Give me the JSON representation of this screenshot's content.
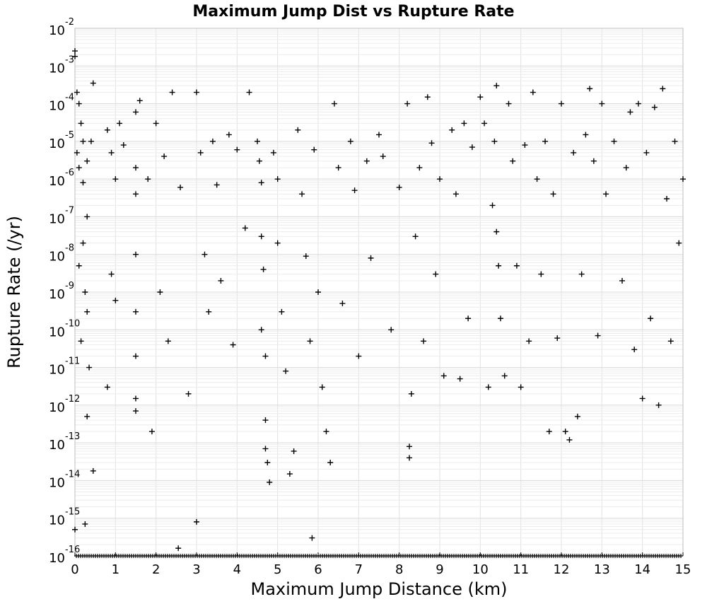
{
  "chart_data": {
    "type": "scatter",
    "title": "Maximum Jump Dist vs Rupture Rate",
    "xlabel": "Maximum Jump Distance (km)",
    "ylabel": "Rupture Rate (/yr)",
    "xlim": [
      0,
      15
    ],
    "ylim": [
      1e-16,
      0.01
    ],
    "yscale": "log",
    "grid": true,
    "legend": "none",
    "marker": "+",
    "marker_color": "#000000",
    "x_ticks": [
      "0",
      "1",
      "2",
      "3",
      "4",
      "5",
      "6",
      "7",
      "8",
      "9",
      "10",
      "11",
      "12",
      "13",
      "14",
      "15"
    ],
    "y_ticks": [
      {
        "base": "10",
        "exp": "-2"
      },
      {
        "base": "10",
        "exp": "-3"
      },
      {
        "base": "10",
        "exp": "-4"
      },
      {
        "base": "10",
        "exp": "-5"
      },
      {
        "base": "10",
        "exp": "-6"
      },
      {
        "base": "10",
        "exp": "-7"
      },
      {
        "base": "10",
        "exp": "-8"
      },
      {
        "base": "10",
        "exp": "-9"
      },
      {
        "base": "10",
        "exp": "-10"
      },
      {
        "base": "10",
        "exp": "-11"
      },
      {
        "base": "10",
        "exp": "-12"
      },
      {
        "base": "10",
        "exp": "-13"
      },
      {
        "base": "10",
        "exp": "-14"
      },
      {
        "base": "10",
        "exp": "-15"
      },
      {
        "base": "10",
        "exp": "-16"
      }
    ],
    "series": [
      {
        "points": [
          [
            0.0,
            0.0025
          ],
          [
            0.0,
            0.0018
          ],
          [
            0.05,
            0.0002
          ],
          [
            0.1,
            0.0001
          ],
          [
            0.15,
            3e-05
          ],
          [
            0.2,
            1e-05
          ],
          [
            0.05,
            5e-06
          ],
          [
            0.1,
            2e-06
          ],
          [
            0.2,
            8e-07
          ],
          [
            0.3,
            3e-06
          ],
          [
            0.4,
            1e-05
          ],
          [
            0.45,
            0.00035
          ],
          [
            0.3,
            1e-07
          ],
          [
            0.2,
            2e-08
          ],
          [
            0.1,
            5e-09
          ],
          [
            0.25,
            1e-09
          ],
          [
            0.3,
            3e-10
          ],
          [
            0.15,
            5e-11
          ],
          [
            0.35,
            1e-11
          ],
          [
            0.3,
            5e-13
          ],
          [
            0.45,
            1.8e-14
          ],
          [
            0.0,
            5e-16
          ],
          [
            0.25,
            7e-16
          ],
          [
            0.8,
            2e-05
          ],
          [
            0.9,
            5e-06
          ],
          [
            1.0,
            1e-06
          ],
          [
            1.1,
            3e-05
          ],
          [
            1.2,
            8e-06
          ],
          [
            0.8,
            3e-12
          ],
          [
            0.9,
            3e-09
          ],
          [
            1.0,
            6e-10
          ],
          [
            1.5,
            6e-05
          ],
          [
            1.6,
            0.00012
          ],
          [
            1.5,
            2e-06
          ],
          [
            1.5,
            4e-07
          ],
          [
            1.5,
            1e-08
          ],
          [
            1.5,
            3e-10
          ],
          [
            1.5,
            2e-11
          ],
          [
            1.5,
            1.5e-12
          ],
          [
            1.5,
            7e-13
          ],
          [
            1.8,
            1e-06
          ],
          [
            1.9,
            2e-13
          ],
          [
            2.0,
            3e-05
          ],
          [
            2.1,
            1e-09
          ],
          [
            2.2,
            4e-06
          ],
          [
            2.3,
            5e-11
          ],
          [
            2.4,
            0.0002
          ],
          [
            2.55,
            1.6e-16
          ],
          [
            2.6,
            6e-07
          ],
          [
            2.8,
            2e-12
          ],
          [
            3.0,
            0.0002
          ],
          [
            3.0,
            8e-16
          ],
          [
            3.1,
            5e-06
          ],
          [
            3.2,
            1e-08
          ],
          [
            3.3,
            3e-10
          ],
          [
            3.4,
            1e-05
          ],
          [
            3.5,
            7e-07
          ],
          [
            3.6,
            2e-09
          ],
          [
            3.8,
            1.5e-05
          ],
          [
            3.9,
            4e-11
          ],
          [
            4.0,
            6e-06
          ],
          [
            4.2,
            5e-08
          ],
          [
            4.3,
            0.0002
          ],
          [
            4.5,
            1e-05
          ],
          [
            4.55,
            3e-06
          ],
          [
            4.6,
            8e-07
          ],
          [
            4.6,
            3e-08
          ],
          [
            4.65,
            4e-09
          ],
          [
            4.6,
            1e-10
          ],
          [
            4.7,
            2e-11
          ],
          [
            4.7,
            4e-13
          ],
          [
            4.7,
            7e-14
          ],
          [
            4.75,
            3e-14
          ],
          [
            4.8,
            9e-15
          ],
          [
            4.9,
            5e-06
          ],
          [
            5.0,
            1e-06
          ],
          [
            5.0,
            2e-08
          ],
          [
            5.1,
            3e-10
          ],
          [
            5.2,
            8e-12
          ],
          [
            5.3,
            1.5e-14
          ],
          [
            5.4,
            6e-14
          ],
          [
            5.5,
            2e-05
          ],
          [
            5.6,
            4e-07
          ],
          [
            5.7,
            9e-09
          ],
          [
            5.8,
            5e-11
          ],
          [
            5.85,
            3e-16
          ],
          [
            5.9,
            6e-06
          ],
          [
            6.0,
            1e-09
          ],
          [
            6.1,
            3e-12
          ],
          [
            6.2,
            2e-13
          ],
          [
            6.3,
            3e-14
          ],
          [
            6.4,
            0.0001
          ],
          [
            6.5,
            2e-06
          ],
          [
            6.6,
            5e-10
          ],
          [
            6.8,
            1e-05
          ],
          [
            6.9,
            5e-07
          ],
          [
            7.0,
            2e-11
          ],
          [
            7.2,
            3e-06
          ],
          [
            7.3,
            8e-09
          ],
          [
            7.5,
            1.5e-05
          ],
          [
            7.6,
            4e-06
          ],
          [
            7.8,
            1e-10
          ],
          [
            8.0,
            6e-07
          ],
          [
            8.2,
            0.0001
          ],
          [
            8.25,
            8e-14
          ],
          [
            8.25,
            4e-14
          ],
          [
            8.3,
            2e-12
          ],
          [
            8.4,
            3e-08
          ],
          [
            8.5,
            2e-06
          ],
          [
            8.6,
            5e-11
          ],
          [
            8.7,
            0.00015
          ],
          [
            8.8,
            9e-06
          ],
          [
            8.9,
            3e-09
          ],
          [
            9.0,
            1e-06
          ],
          [
            9.1,
            6e-12
          ],
          [
            9.3,
            2e-05
          ],
          [
            9.4,
            4e-07
          ],
          [
            9.5,
            5e-12
          ],
          [
            9.6,
            3e-05
          ],
          [
            9.7,
            2e-10
          ],
          [
            9.8,
            7e-06
          ],
          [
            10.0,
            0.00015
          ],
          [
            10.1,
            3e-05
          ],
          [
            10.2,
            3e-12
          ],
          [
            10.3,
            2e-07
          ],
          [
            10.35,
            1e-05
          ],
          [
            10.4,
            0.0003
          ],
          [
            10.4,
            4e-08
          ],
          [
            10.45,
            5e-09
          ],
          [
            10.5,
            2e-10
          ],
          [
            10.6,
            6e-12
          ],
          [
            10.7,
            0.0001
          ],
          [
            10.8,
            3e-06
          ],
          [
            10.9,
            5e-09
          ],
          [
            11.0,
            3e-12
          ],
          [
            11.1,
            8e-06
          ],
          [
            11.2,
            5e-11
          ],
          [
            11.3,
            0.0002
          ],
          [
            11.4,
            1e-06
          ],
          [
            11.5,
            3e-09
          ],
          [
            11.6,
            1e-05
          ],
          [
            11.7,
            2e-13
          ],
          [
            11.8,
            4e-07
          ],
          [
            11.9,
            6e-11
          ],
          [
            12.0,
            0.0001
          ],
          [
            12.1,
            2e-13
          ],
          [
            12.2,
            1.2e-13
          ],
          [
            12.3,
            5e-06
          ],
          [
            12.4,
            5e-13
          ],
          [
            12.5,
            3e-09
          ],
          [
            12.6,
            1.5e-05
          ],
          [
            12.7,
            0.00025
          ],
          [
            12.8,
            3e-06
          ],
          [
            12.9,
            7e-11
          ],
          [
            13.0,
            0.0001
          ],
          [
            13.1,
            4e-07
          ],
          [
            13.3,
            1e-05
          ],
          [
            13.5,
            2e-09
          ],
          [
            13.6,
            2e-06
          ],
          [
            13.7,
            6e-05
          ],
          [
            13.8,
            3e-11
          ],
          [
            13.9,
            0.0001
          ],
          [
            14.0,
            1.5e-12
          ],
          [
            14.1,
            5e-06
          ],
          [
            14.2,
            2e-10
          ],
          [
            14.3,
            8e-05
          ],
          [
            14.4,
            1e-12
          ],
          [
            14.5,
            0.00025
          ],
          [
            14.6,
            3e-07
          ],
          [
            14.7,
            5e-11
          ],
          [
            14.8,
            1e-05
          ],
          [
            14.9,
            2e-08
          ],
          [
            15.0,
            1e-06
          ]
        ]
      }
    ]
  }
}
